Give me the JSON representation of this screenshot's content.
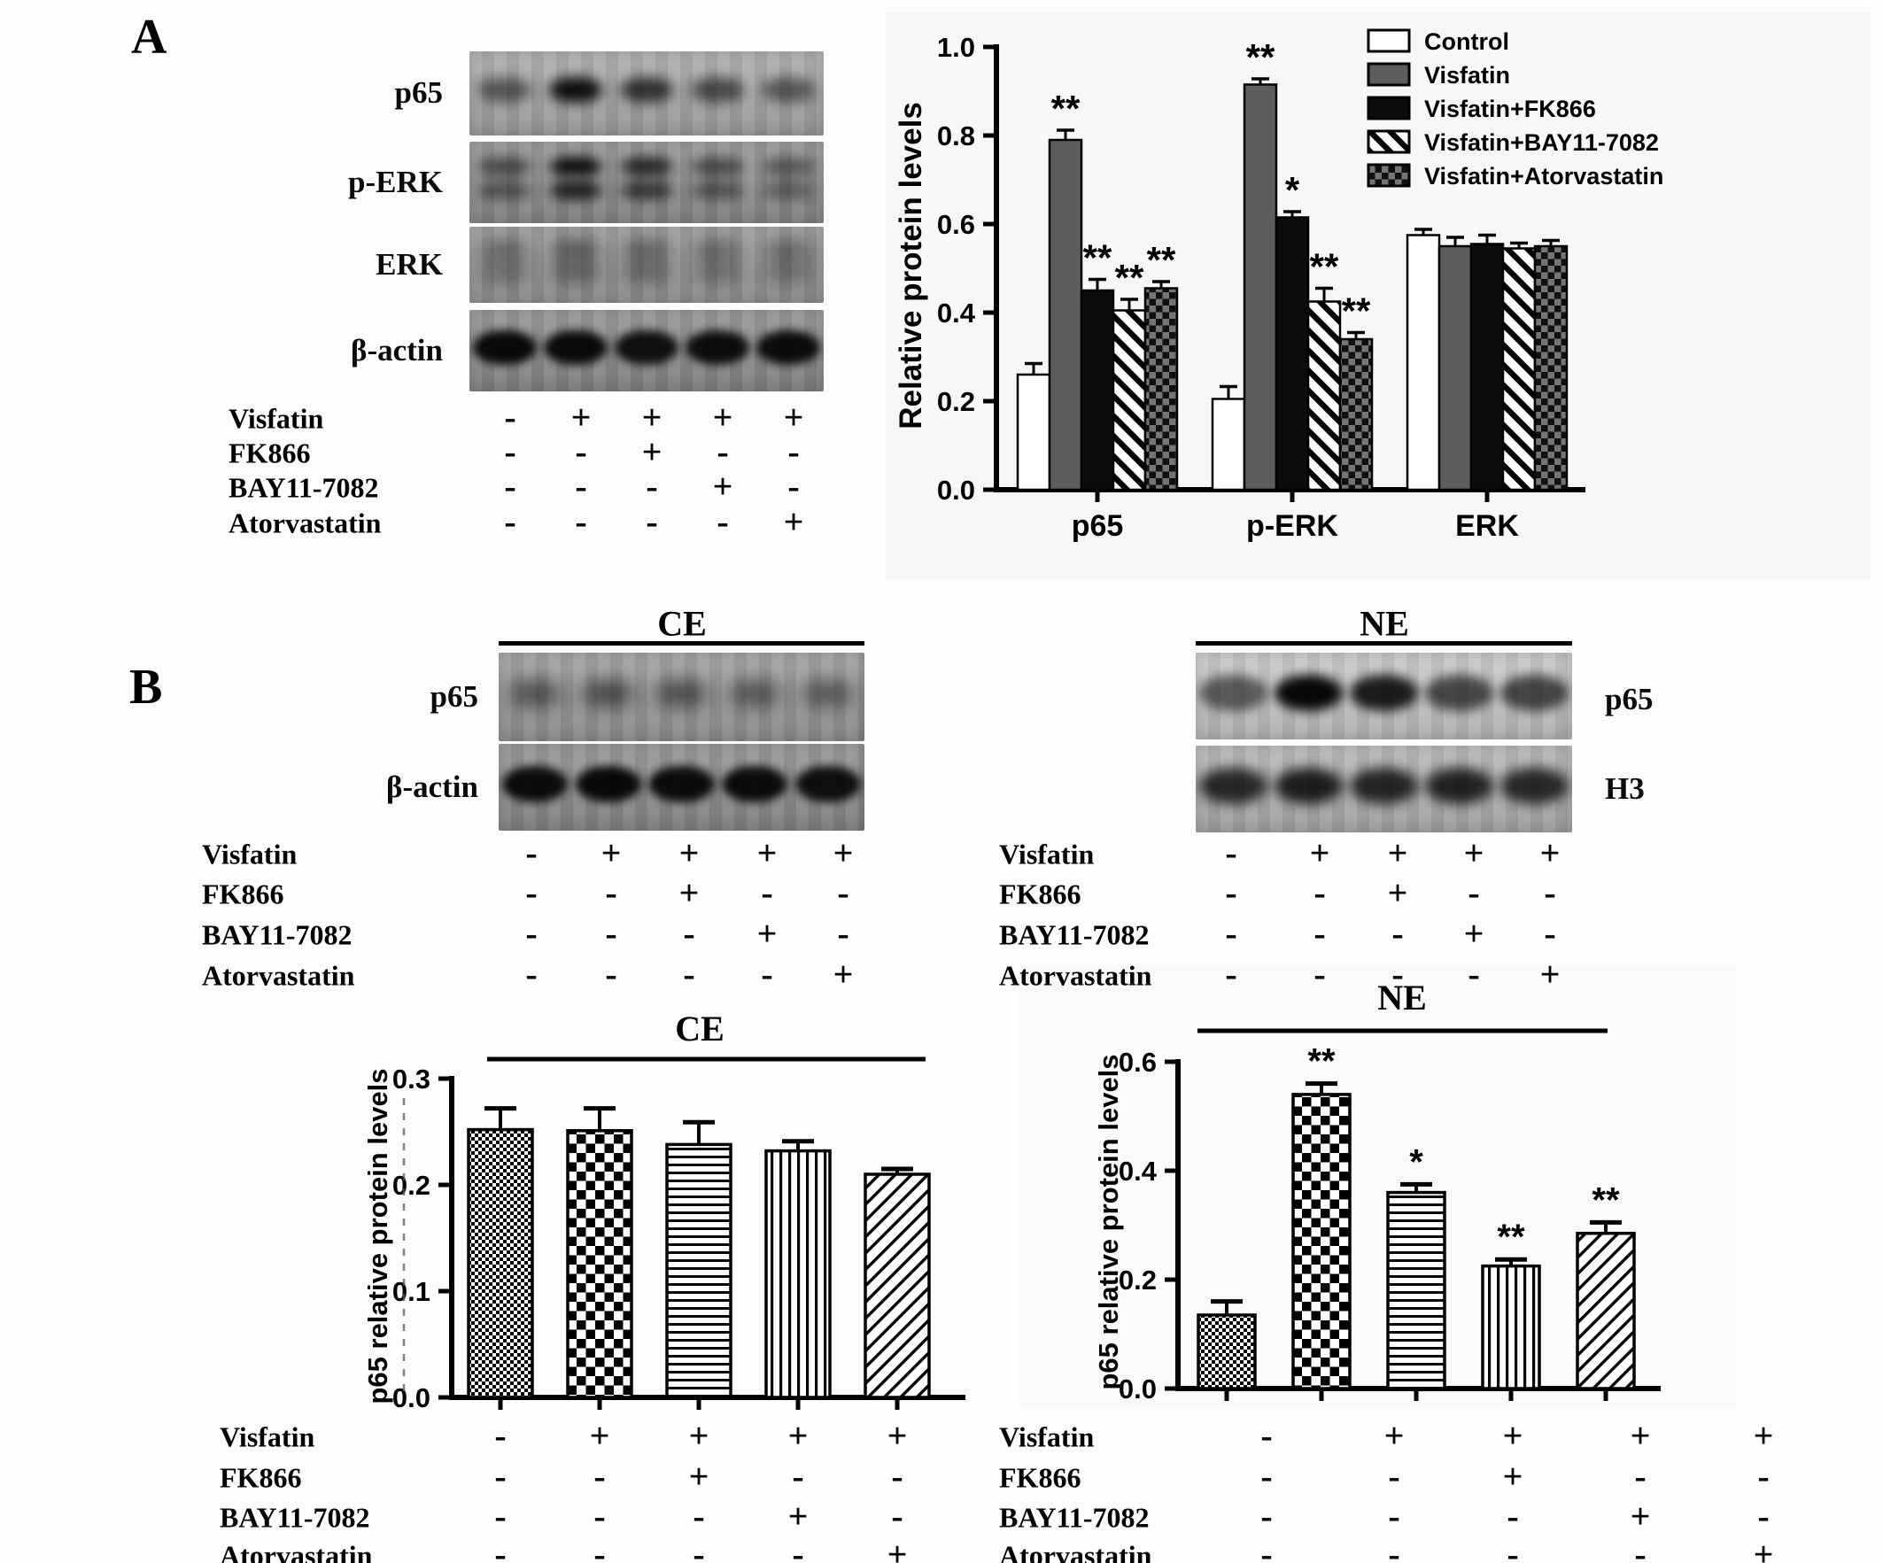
{
  "panel_a": {
    "label": "A",
    "blots": [
      {
        "name": "p65",
        "bg": "#a7a7a7",
        "double": false,
        "thick": false,
        "bands": [
          0.5,
          0.95,
          0.72,
          0.58,
          0.5
        ]
      },
      {
        "name": "p-ERK",
        "bg": "#909090",
        "double": true,
        "thick": false,
        "bands": [
          0.55,
          0.97,
          0.78,
          0.55,
          0.45
        ]
      },
      {
        "name": "ERK",
        "bg": "#9d9d9d",
        "double": true,
        "thick": false,
        "bands": [
          0.5,
          0.62,
          0.55,
          0.5,
          0.5
        ]
      },
      {
        "name": "β-actin",
        "bg": "#8c8c8c",
        "double": false,
        "thick": true,
        "bands": [
          0.97,
          0.96,
          0.92,
          0.94,
          0.95
        ]
      }
    ],
    "conditions": {
      "rows": [
        {
          "label": "Visfatin",
          "values": [
            "-",
            "+",
            "+",
            "+",
            "+"
          ]
        },
        {
          "label": "FK866",
          "values": [
            "-",
            "-",
            "+",
            "-",
            "-"
          ]
        },
        {
          "label": "BAY11-7082",
          "values": [
            "-",
            "-",
            "-",
            "+",
            "-"
          ]
        },
        {
          "label": "Atorvastatin",
          "values": [
            "-",
            "-",
            "-",
            "-",
            "+"
          ]
        }
      ]
    }
  },
  "panel_b": {
    "label": "B",
    "ce": {
      "title": "CE",
      "blots": [
        {
          "name": "p65",
          "bg": "#9a9a9a",
          "double": false,
          "thick": false,
          "bands": [
            0.55,
            0.6,
            0.58,
            0.52,
            0.5
          ]
        },
        {
          "name": "β-actin",
          "bg": "#8d8d8d",
          "double": false,
          "thick": true,
          "bands": [
            0.95,
            0.97,
            0.95,
            0.95,
            0.93
          ]
        }
      ],
      "conditions": {
        "rows": [
          {
            "label": "Visfatin",
            "values": [
              "-",
              "+",
              "+",
              "+",
              "+"
            ]
          },
          {
            "label": "FK866",
            "values": [
              "-",
              "-",
              "+",
              "-",
              "-"
            ]
          },
          {
            "label": "BAY11-7082",
            "values": [
              "-",
              "-",
              "-",
              "+",
              "-"
            ]
          },
          {
            "label": "Atorvastatin",
            "values": [
              "-",
              "-",
              "-",
              "-",
              "+"
            ]
          }
        ]
      }
    },
    "ne": {
      "title": "NE",
      "blots": [
        {
          "name": "p65",
          "bg": "#c5c5c5",
          "double": false,
          "thick": true,
          "bands": [
            0.55,
            0.98,
            0.88,
            0.65,
            0.66
          ]
        },
        {
          "name": "H3",
          "bg": "#b2b2b2",
          "double": false,
          "thick": true,
          "bands": [
            0.8,
            0.86,
            0.82,
            0.83,
            0.8
          ]
        }
      ],
      "conditions": {
        "rows": [
          {
            "label": "Visfatin",
            "values": [
              "-",
              "+",
              "+",
              "+",
              "+"
            ]
          },
          {
            "label": "FK866",
            "values": [
              "-",
              "-",
              "+",
              "-",
              "-"
            ]
          },
          {
            "label": "BAY11-7082",
            "values": [
              "-",
              "-",
              "-",
              "+",
              "-"
            ]
          },
          {
            "label": "Atorvastatin",
            "values": [
              "-",
              "-",
              "-",
              "-",
              "+"
            ]
          }
        ]
      }
    }
  },
  "chart_data": [
    {
      "id": "panel_a_chart",
      "type": "bar",
      "title": "",
      "ylabel": "Relative  protein levels",
      "ylim": [
        0,
        1.0
      ],
      "yticks": [
        "0.0",
        "0.2",
        "0.4",
        "0.6",
        "0.8",
        "1.0"
      ],
      "grid": false,
      "legend_position": "top-right",
      "categories": [
        "p65",
        "p-ERK",
        "ERK"
      ],
      "series": [
        {
          "name": "Control",
          "pattern": "white",
          "values": [
            0.26,
            0.205,
            0.575
          ],
          "errors": [
            0.025,
            0.028,
            0.013
          ],
          "sig": [
            "",
            "",
            ""
          ]
        },
        {
          "name": "Visfatin",
          "pattern": "gray",
          "values": [
            0.79,
            0.915,
            0.55
          ],
          "errors": [
            0.022,
            0.013,
            0.02
          ],
          "sig": [
            "**",
            "**",
            ""
          ]
        },
        {
          "name": "Visfatin+FK866",
          "pattern": "black",
          "values": [
            0.45,
            0.615,
            0.555
          ],
          "errors": [
            0.025,
            0.013,
            0.02
          ],
          "sig": [
            "**",
            "*",
            ""
          ]
        },
        {
          "name": "Visfatin+BAY11-7082",
          "pattern": "diag",
          "values": [
            0.405,
            0.425,
            0.545
          ],
          "errors": [
            0.025,
            0.03,
            0.012
          ],
          "sig": [
            "**",
            "**",
            ""
          ]
        },
        {
          "name": "Visfatin+Atorvastatin",
          "pattern": "checker",
          "values": [
            0.455,
            0.34,
            0.55
          ],
          "errors": [
            0.015,
            0.015,
            0.013
          ],
          "sig": [
            "**",
            "**",
            ""
          ]
        }
      ]
    },
    {
      "id": "ce_chart",
      "type": "bar",
      "title": "CE",
      "ylabel": "p65 relative protein levels",
      "ylim": [
        0,
        0.3
      ],
      "yticks": [
        "0.0",
        "0.1",
        "0.2",
        "0.3"
      ],
      "grid": false,
      "bars": [
        {
          "value": 0.252,
          "error": 0.02,
          "sig": "",
          "pattern": "finecheck"
        },
        {
          "value": 0.251,
          "error": 0.021,
          "sig": "",
          "pattern": "checker-bw"
        },
        {
          "value": 0.238,
          "error": 0.021,
          "sig": "",
          "pattern": "hlines"
        },
        {
          "value": 0.232,
          "error": 0.009,
          "sig": "",
          "pattern": "vlines"
        },
        {
          "value": 0.21,
          "error": 0.005,
          "sig": "",
          "pattern": "diag-thin"
        }
      ],
      "conditions": {
        "rows": [
          {
            "label": "Visfatin",
            "values": [
              "-",
              "+",
              "+",
              "+",
              "+"
            ]
          },
          {
            "label": "FK866",
            "values": [
              "-",
              "-",
              "+",
              "-",
              "-"
            ]
          },
          {
            "label": "BAY11-7082",
            "values": [
              "-",
              "-",
              "-",
              "+",
              "-"
            ]
          },
          {
            "label": "Atorvastatin",
            "values": [
              "-",
              "-",
              "-",
              "-",
              "+"
            ]
          }
        ]
      }
    },
    {
      "id": "ne_chart",
      "type": "bar",
      "title": "NE",
      "ylabel": "p65 relative protein levels",
      "ylim": [
        0,
        0.6
      ],
      "yticks": [
        "0.0",
        "0.2",
        "0.4",
        "0.6"
      ],
      "grid": false,
      "bars": [
        {
          "value": 0.135,
          "error": 0.025,
          "sig": "",
          "pattern": "finecheck"
        },
        {
          "value": 0.54,
          "error": 0.02,
          "sig": "**",
          "pattern": "checker-bw"
        },
        {
          "value": 0.36,
          "error": 0.015,
          "sig": "*",
          "pattern": "hlines"
        },
        {
          "value": 0.225,
          "error": 0.012,
          "sig": "**",
          "pattern": "vlines"
        },
        {
          "value": 0.285,
          "error": 0.02,
          "sig": "**",
          "pattern": "diag-thin"
        }
      ],
      "conditions": {
        "rows": [
          {
            "label": "Visfatin",
            "values": [
              "-",
              "+",
              "+",
              "+",
              "+"
            ]
          },
          {
            "label": "FK866",
            "values": [
              "-",
              "-",
              "+",
              "-",
              "-"
            ]
          },
          {
            "label": "BAY11-7082",
            "values": [
              "-",
              "-",
              "-",
              "+",
              "-"
            ]
          },
          {
            "label": "Atorvastatin",
            "values": [
              "-",
              "-",
              "-",
              "-",
              "+"
            ]
          }
        ]
      }
    }
  ]
}
